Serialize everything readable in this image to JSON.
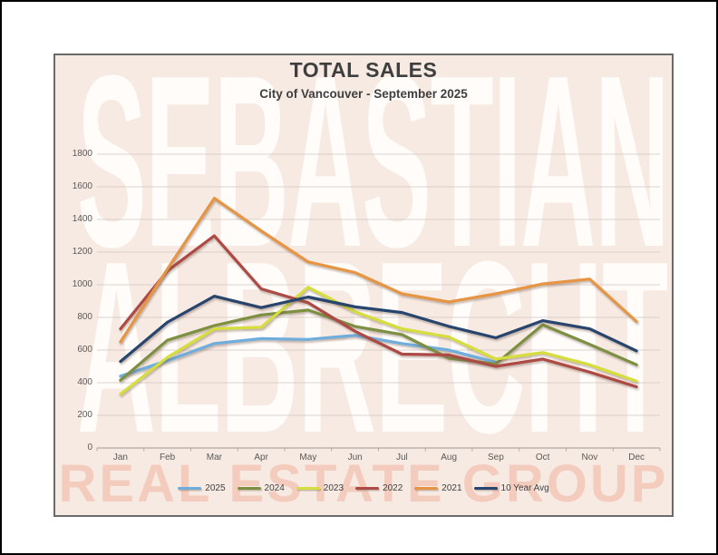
{
  "page": {
    "title": "TOTAL SALES",
    "subtitle": "City of Vancouver - September 2025",
    "watermark": {
      "line1": "SEBASTIAN",
      "line2": "ALBRECHT",
      "line3": "REAL ESTATE GROUP"
    },
    "colors": {
      "panel_background": "#F7EAE3",
      "title_text": "#3F3F3F",
      "axis_text": "#595959",
      "gridline": "#C9BFB9",
      "axis_line": "#B3A9A3",
      "watermark_white": "#FFFDFC",
      "watermark_salmon": "#F4CCBE"
    }
  },
  "chart_data": {
    "type": "line",
    "title": "TOTAL SALES",
    "subtitle": "City of Vancouver - September 2025",
    "categories": [
      "Jan",
      "Feb",
      "Mar",
      "Apr",
      "May",
      "Jun",
      "Jul",
      "Aug",
      "Sep",
      "Oct",
      "Nov",
      "Dec"
    ],
    "series": [
      {
        "name": "2025",
        "color": "#6FAEDC",
        "values": [
          440,
          535,
          640,
          670,
          665,
          690,
          640,
          600,
          525
        ]
      },
      {
        "name": "2024",
        "color": "#7D9042",
        "values": [
          415,
          660,
          750,
          815,
          845,
          745,
          695,
          550,
          515,
          755,
          635,
          510
        ]
      },
      {
        "name": "2023",
        "color": "#D6DE3E",
        "values": [
          330,
          555,
          730,
          740,
          985,
          835,
          730,
          680,
          545,
          585,
          510,
          410
        ]
      },
      {
        "name": "2022",
        "color": "#AE4A45",
        "values": [
          730,
          1085,
          1300,
          975,
          890,
          715,
          575,
          570,
          500,
          545,
          465,
          375
        ]
      },
      {
        "name": "2021",
        "color": "#E59544",
        "values": [
          650,
          1095,
          1530,
          1330,
          1140,
          1075,
          945,
          895,
          945,
          1005,
          1035,
          775
        ]
      },
      {
        "name": "10 Year Avg",
        "color": "#28456E",
        "values": [
          530,
          770,
          930,
          860,
          925,
          865,
          830,
          745,
          675,
          780,
          730,
          595
        ]
      }
    ],
    "ylim": [
      0,
      1800
    ],
    "ytick_step": 200,
    "grid": true,
    "xlabel": "",
    "ylabel": "",
    "legend_position": "bottom"
  }
}
